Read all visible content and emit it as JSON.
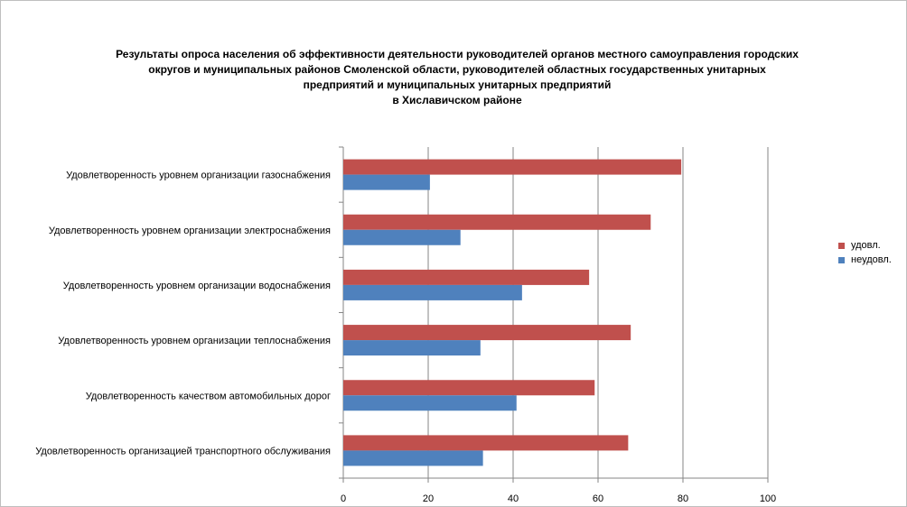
{
  "chart_data": {
    "type": "bar",
    "orientation": "horizontal",
    "title_lines": [
      "Результаты опроса населения об эффективности деятельности руководителей органов местного самоуправления городских",
      "округов и муниципальных районов Смоленской области, руководителей областных государственных унитарных",
      "предприятий и муниципальных унитарных предприятий",
      "в Хиславичском районе"
    ],
    "categories": [
      "Удовлетворенность уровнем организации газоснабжения",
      "Удовлетворенность уровнем организации электроснабжения",
      "Удовлетворенность уровнем организации водоснабжения",
      "Удовлетворенность уровнем организации теплоснабжения",
      "Удовлетворенность качеством автомобильных дорог",
      "Удовлетворенность организацией транспортного обслуживания"
    ],
    "series": [
      {
        "name": "удовл.",
        "color": "#c0504d",
        "values": [
          79.6,
          72.4,
          57.9,
          67.7,
          59.2,
          67.1
        ]
      },
      {
        "name": "неудовл.",
        "color": "#4f81bd",
        "values": [
          20.4,
          27.6,
          42.1,
          32.3,
          40.8,
          32.9
        ]
      }
    ],
    "xlim": [
      0,
      100
    ],
    "xticks": [
      "0",
      "20",
      "40",
      "60",
      "80",
      "100"
    ],
    "grid": true,
    "legend_position": "right"
  }
}
